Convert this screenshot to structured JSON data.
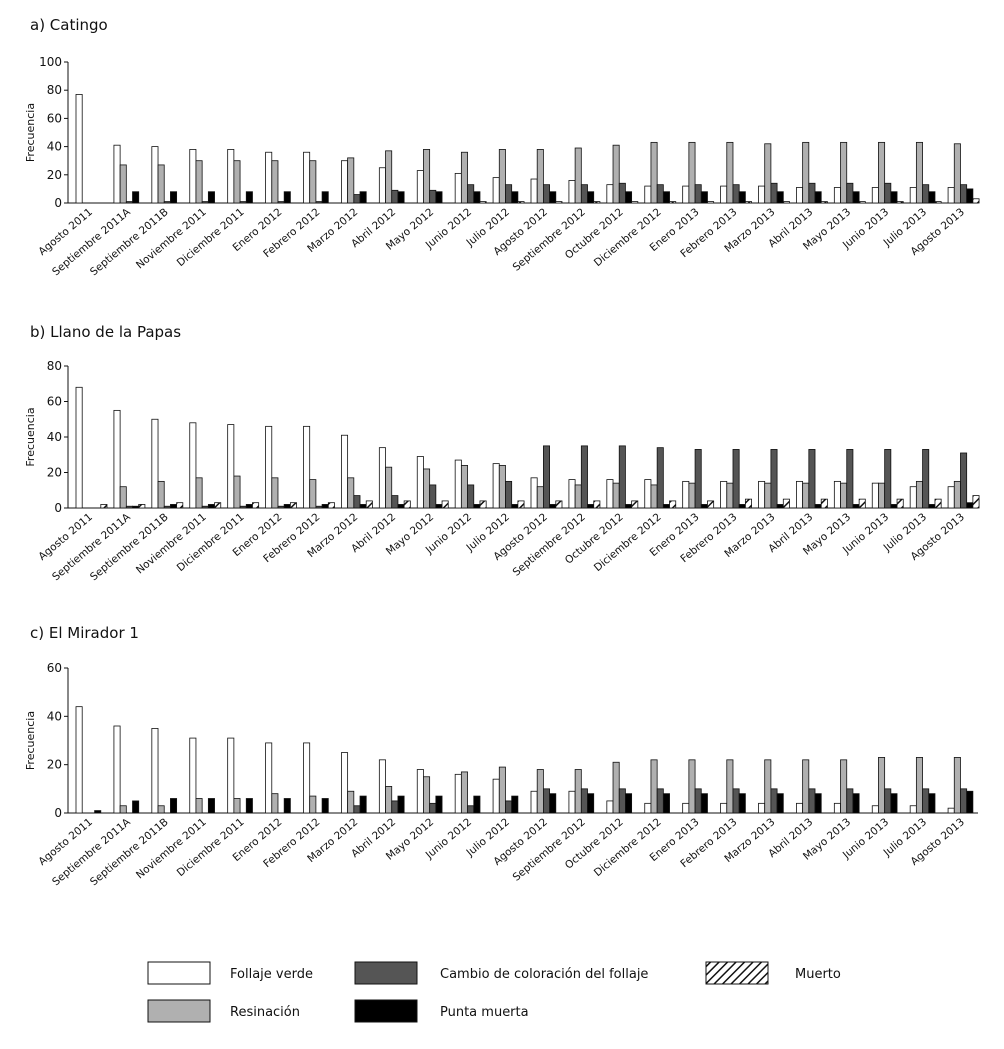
{
  "chart_data": [
    {
      "type": "bar",
      "title": "a) Catingo",
      "ylabel": "Frecuencia",
      "xlabel": "",
      "ylim": [
        0,
        100
      ],
      "yticks": [
        0,
        20,
        40,
        60,
        80,
        100
      ],
      "categories": [
        "Agosto 2011",
        "Septiembre 2011A",
        "Septiembre 2011B",
        "Noviembre 2011",
        "Diciembre 2011",
        "Enero 2012",
        "Febrero 2012",
        "Marzo 2012",
        "Abril 2012",
        "Mayo 2012",
        "Junio 2012",
        "Julio 2012",
        "Agosto 2012",
        "Septiembre 2012",
        "Octubre 2012",
        "Diciembre 2012",
        "Enero 2013",
        "Febrero 2013",
        "Marzo 2013",
        "Abril 2013",
        "Mayo 2013",
        "Junio 2013",
        "Julio 2013",
        "Agosto 2013"
      ],
      "series": [
        {
          "name": "Follaje verde",
          "values": [
            77,
            41,
            40,
            38,
            38,
            36,
            36,
            30,
            25,
            23,
            21,
            18,
            17,
            16,
            13,
            12,
            12,
            12,
            12,
            11,
            11,
            11,
            11,
            11
          ]
        },
        {
          "name": "Resinación",
          "values": [
            0,
            27,
            27,
            30,
            30,
            30,
            30,
            32,
            37,
            38,
            36,
            38,
            38,
            39,
            41,
            43,
            43,
            43,
            42,
            43,
            43,
            43,
            43,
            42
          ]
        },
        {
          "name": "Cambio de coloración del follaje",
          "values": [
            0,
            1,
            1,
            1,
            1,
            1,
            1,
            6,
            9,
            9,
            13,
            13,
            13,
            13,
            14,
            13,
            13,
            13,
            14,
            14,
            14,
            14,
            13,
            13
          ]
        },
        {
          "name": "Punta muerta",
          "values": [
            0,
            8,
            8,
            8,
            8,
            8,
            8,
            8,
            8,
            8,
            8,
            8,
            8,
            8,
            8,
            8,
            8,
            8,
            8,
            8,
            8,
            8,
            8,
            10
          ]
        },
        {
          "name": "Muerto",
          "values": [
            0,
            0,
            0,
            0,
            0,
            0,
            0,
            0,
            0,
            0,
            1,
            1,
            1,
            1,
            1,
            1,
            1,
            1,
            1,
            1,
            1,
            1,
            1,
            3
          ]
        }
      ]
    },
    {
      "type": "bar",
      "title": "b) Llano de la Papas",
      "ylabel": "Frecuencia",
      "xlabel": "",
      "ylim": [
        0,
        80
      ],
      "yticks": [
        0,
        20,
        40,
        60,
        80
      ],
      "categories": [
        "Agosto 2011",
        "Septiembre 2011A",
        "Septiembre 2011B",
        "Noviembre 2011",
        "Diciembre 2011",
        "Enero 2012",
        "Febrero 2012",
        "Marzo 2012",
        "Abril 2012",
        "Mayo 2012",
        "Junio 2012",
        "Julio 2012",
        "Agosto 2012",
        "Septiembre 2012",
        "Octubre 2012",
        "Diciembre 2012",
        "Enero 2013",
        "Febrero 2013",
        "Marzo 2013",
        "Abril 2013",
        "Mayo 2013",
        "Junio 2013",
        "Julio 2013",
        "Agosto 2013"
      ],
      "series": [
        {
          "name": "Follaje verde",
          "values": [
            68,
            55,
            50,
            48,
            47,
            46,
            46,
            41,
            34,
            29,
            27,
            25,
            17,
            16,
            16,
            16,
            15,
            15,
            15,
            15,
            15,
            14,
            12,
            12
          ]
        },
        {
          "name": "Resinación",
          "values": [
            0,
            12,
            15,
            17,
            18,
            17,
            16,
            17,
            23,
            22,
            24,
            24,
            12,
            13,
            14,
            13,
            14,
            14,
            14,
            14,
            14,
            14,
            15,
            15
          ]
        },
        {
          "name": "Cambio de coloración del follaje",
          "values": [
            0,
            1,
            1,
            1,
            1,
            1,
            1,
            7,
            7,
            13,
            13,
            15,
            35,
            35,
            35,
            34,
            33,
            33,
            33,
            33,
            33,
            33,
            33,
            31
          ]
        },
        {
          "name": "Punta muerta",
          "values": [
            0,
            1,
            2,
            2,
            2,
            2,
            2,
            2,
            2,
            2,
            2,
            2,
            2,
            2,
            2,
            2,
            2,
            2,
            2,
            2,
            2,
            2,
            2,
            3
          ]
        },
        {
          "name": "Muerto",
          "values": [
            2,
            2,
            3,
            3,
            3,
            3,
            3,
            4,
            4,
            4,
            4,
            4,
            4,
            4,
            4,
            4,
            4,
            5,
            5,
            5,
            5,
            5,
            5,
            7
          ]
        }
      ]
    },
    {
      "type": "bar",
      "title": "c) El Mirador 1",
      "ylabel": "Frecuencia",
      "xlabel": "",
      "ylim": [
        0,
        60
      ],
      "yticks": [
        0,
        20,
        40,
        60
      ],
      "categories": [
        "Agosto 2011",
        "Septiembre 2011A",
        "Septiembre 2011B",
        "Noviembre 2011",
        "Diciembre 2011",
        "Enero 2012",
        "Febrero 2012",
        "Marzo 2012",
        "Abril 2012",
        "Mayo 2012",
        "Junio 2012",
        "Julio 2012",
        "Agosto 2012",
        "Septiembre 2012",
        "Octubre 2012",
        "Diciembre 2012",
        "Enero 2013",
        "Febrero 2013",
        "Marzo 2013",
        "Abril 2013",
        "Mayo 2013",
        "Junio 2013",
        "Julio 2013",
        "Agosto 2013"
      ],
      "series": [
        {
          "name": "Follaje verde",
          "values": [
            44,
            36,
            35,
            31,
            31,
            29,
            29,
            25,
            22,
            18,
            16,
            14,
            9,
            9,
            5,
            4,
            4,
            4,
            4,
            4,
            4,
            3,
            3,
            2
          ]
        },
        {
          "name": "Resinación",
          "values": [
            0,
            3,
            3,
            6,
            6,
            8,
            7,
            9,
            11,
            15,
            17,
            19,
            18,
            18,
            21,
            22,
            22,
            22,
            22,
            22,
            22,
            23,
            23,
            23
          ]
        },
        {
          "name": "Cambio de coloración del follaje",
          "values": [
            0,
            0,
            0,
            0,
            0,
            0,
            0,
            3,
            5,
            4,
            3,
            5,
            10,
            10,
            10,
            10,
            10,
            10,
            10,
            10,
            10,
            10,
            10,
            10
          ]
        },
        {
          "name": "Punta muerta",
          "values": [
            1,
            5,
            6,
            6,
            6,
            6,
            6,
            7,
            7,
            7,
            7,
            7,
            8,
            8,
            8,
            8,
            8,
            8,
            8,
            8,
            8,
            8,
            8,
            9
          ]
        },
        {
          "name": "Muerto",
          "values": [
            0,
            0,
            0,
            0,
            0,
            0,
            0,
            0,
            0,
            0,
            0,
            0,
            0,
            0,
            0,
            0,
            0,
            0,
            0,
            0,
            0,
            0,
            0,
            0
          ]
        }
      ]
    }
  ],
  "legend": {
    "placement": "bottom",
    "entries": [
      {
        "label": "Follaje verde",
        "fill": "#ffffff"
      },
      {
        "label": "Cambio de coloración del follaje",
        "fill": "#555555"
      },
      {
        "label": "Muerto",
        "fill": "hatch"
      },
      {
        "label": "Resinación",
        "fill": "#b0b0b0"
      },
      {
        "label": "Punta muerta",
        "fill": "#000000"
      }
    ]
  },
  "colors": {
    "follaje_verde": "#ffffff",
    "resinacion": "#b0b0b0",
    "cambio": "#555555",
    "punta_muerta": "#000000",
    "outline": "#111111"
  }
}
